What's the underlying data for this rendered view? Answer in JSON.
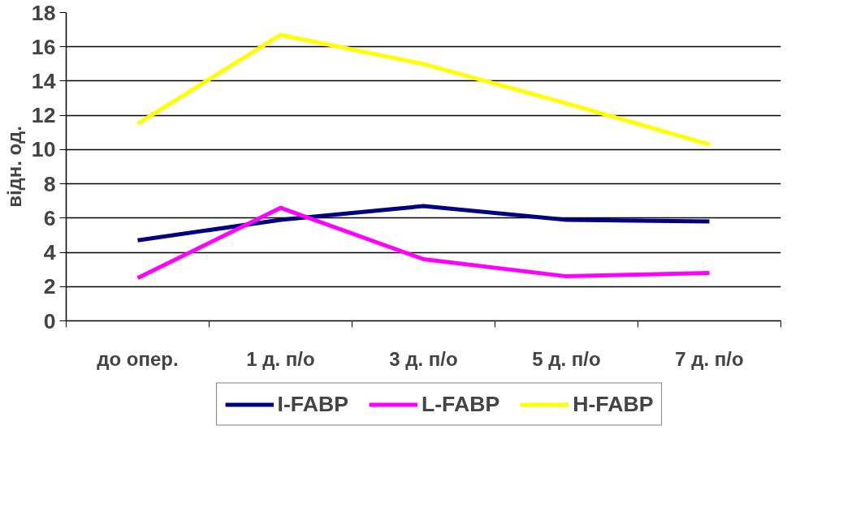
{
  "chart_data": {
    "type": "line",
    "ylabel": "відн. од.",
    "categories": [
      "до опер.",
      "1 д. п/о",
      "3 д. п/о",
      "5 д. п/о",
      "7 д. п/о"
    ],
    "series": [
      {
        "name": "I-FABP",
        "color": "#000080",
        "values": [
          4.7,
          5.9,
          6.7,
          5.9,
          5.8
        ]
      },
      {
        "name": "L-FABP",
        "color": "#ff00ff",
        "values": [
          2.5,
          6.6,
          3.6,
          2.6,
          2.8
        ]
      },
      {
        "name": "H-FABP",
        "color": "#ffff00",
        "values": [
          11.5,
          16.7,
          15.0,
          12.7,
          10.3
        ]
      }
    ],
    "ylim": [
      0,
      18
    ],
    "yticks": [
      0,
      2,
      4,
      6,
      8,
      10,
      12,
      14,
      16,
      18
    ],
    "grid": "y",
    "legend": "bottom",
    "marker": "none",
    "line_style": "solid"
  }
}
